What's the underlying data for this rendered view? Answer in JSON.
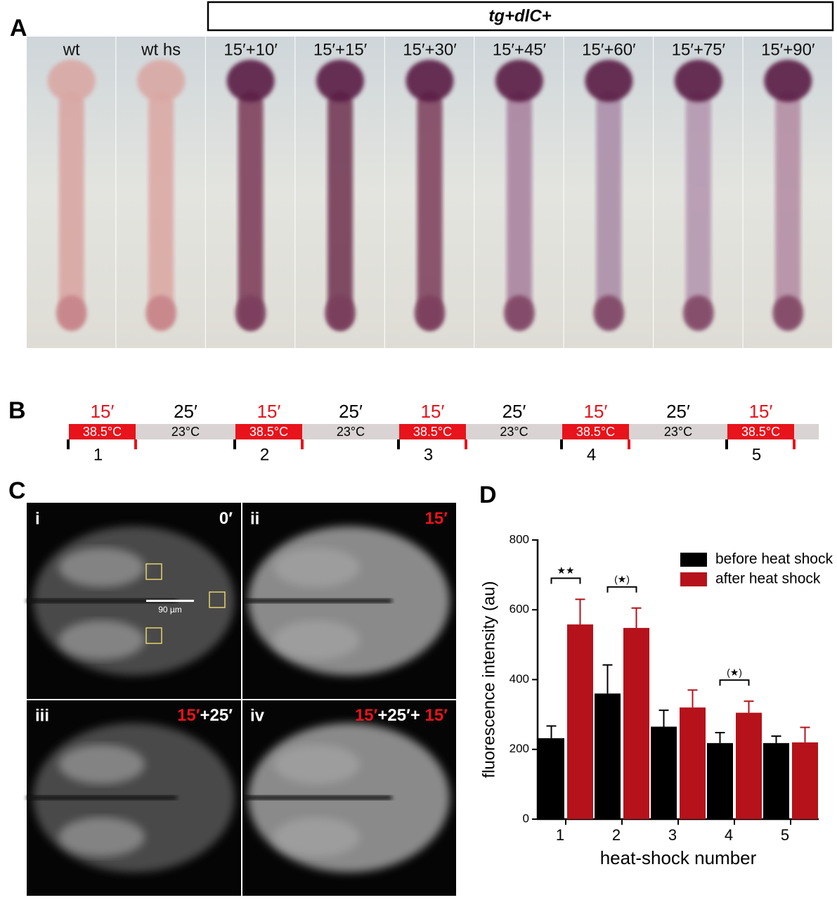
{
  "panel_a": {
    "label": "A",
    "header": "tg+dlC+",
    "images": [
      "wt",
      "wt hs",
      "15′+10′",
      "15′+15′",
      "15′+30′",
      "15′+45′",
      "15′+60′",
      "15′+75′",
      "15′+90′"
    ]
  },
  "panel_b": {
    "label": "B",
    "heat_shocks": [
      {
        "duration": "15′",
        "temperature": "38.5°C",
        "number": "1"
      },
      {
        "duration": "15′",
        "temperature": "38.5°C",
        "number": "2"
      },
      {
        "duration": "15′",
        "temperature": "38.5°C",
        "number": "3"
      },
      {
        "duration": "15′",
        "temperature": "38.5°C",
        "number": "4"
      },
      {
        "duration": "15′",
        "temperature": "38.5°C",
        "number": "5"
      }
    ],
    "rests": [
      {
        "duration": "25′",
        "temperature": "23°C"
      },
      {
        "duration": "25′",
        "temperature": "23°C"
      },
      {
        "duration": "25′",
        "temperature": "23°C"
      },
      {
        "duration": "25′",
        "temperature": "23°C"
      }
    ]
  },
  "panel_c": {
    "label": "C",
    "scale_bar": "90 µm",
    "images": [
      {
        "index": "i",
        "time": [
          {
            "text": "0′",
            "color": "white"
          }
        ]
      },
      {
        "index": "ii",
        "time": [
          {
            "text": "15′",
            "color": "red"
          }
        ]
      },
      {
        "index": "iii",
        "time": [
          {
            "text": "15′",
            "color": "red"
          },
          {
            "text": "+25′",
            "color": "white"
          }
        ]
      },
      {
        "index": "iv",
        "time": [
          {
            "text": "15′",
            "color": "red"
          },
          {
            "text": "+25′+",
            "color": "white"
          },
          {
            "text": " 15′",
            "color": "red"
          }
        ]
      }
    ]
  },
  "chart_data": {
    "type": "bar",
    "label": "D",
    "x_label": "heat-shock number",
    "y_label": "fluorescence intensity (au)",
    "categories": [
      "1",
      "2",
      "3",
      "4",
      "5"
    ],
    "series": [
      {
        "name": "before heat shock",
        "color": "#000000",
        "values": [
          232,
          360,
          265,
          218,
          218
        ],
        "errors": [
          35,
          82,
          47,
          30,
          20
        ]
      },
      {
        "name": "after heat shock",
        "color": "#b5121b",
        "values": [
          558,
          548,
          320,
          305,
          220
        ],
        "errors": [
          72,
          57,
          50,
          33,
          43
        ]
      }
    ],
    "significance": [
      "★★",
      "(★)",
      null,
      "(★)",
      null
    ],
    "ylim": [
      0,
      800
    ],
    "yticks": [
      0,
      200,
      400,
      600,
      800
    ],
    "legend": "top-right"
  }
}
